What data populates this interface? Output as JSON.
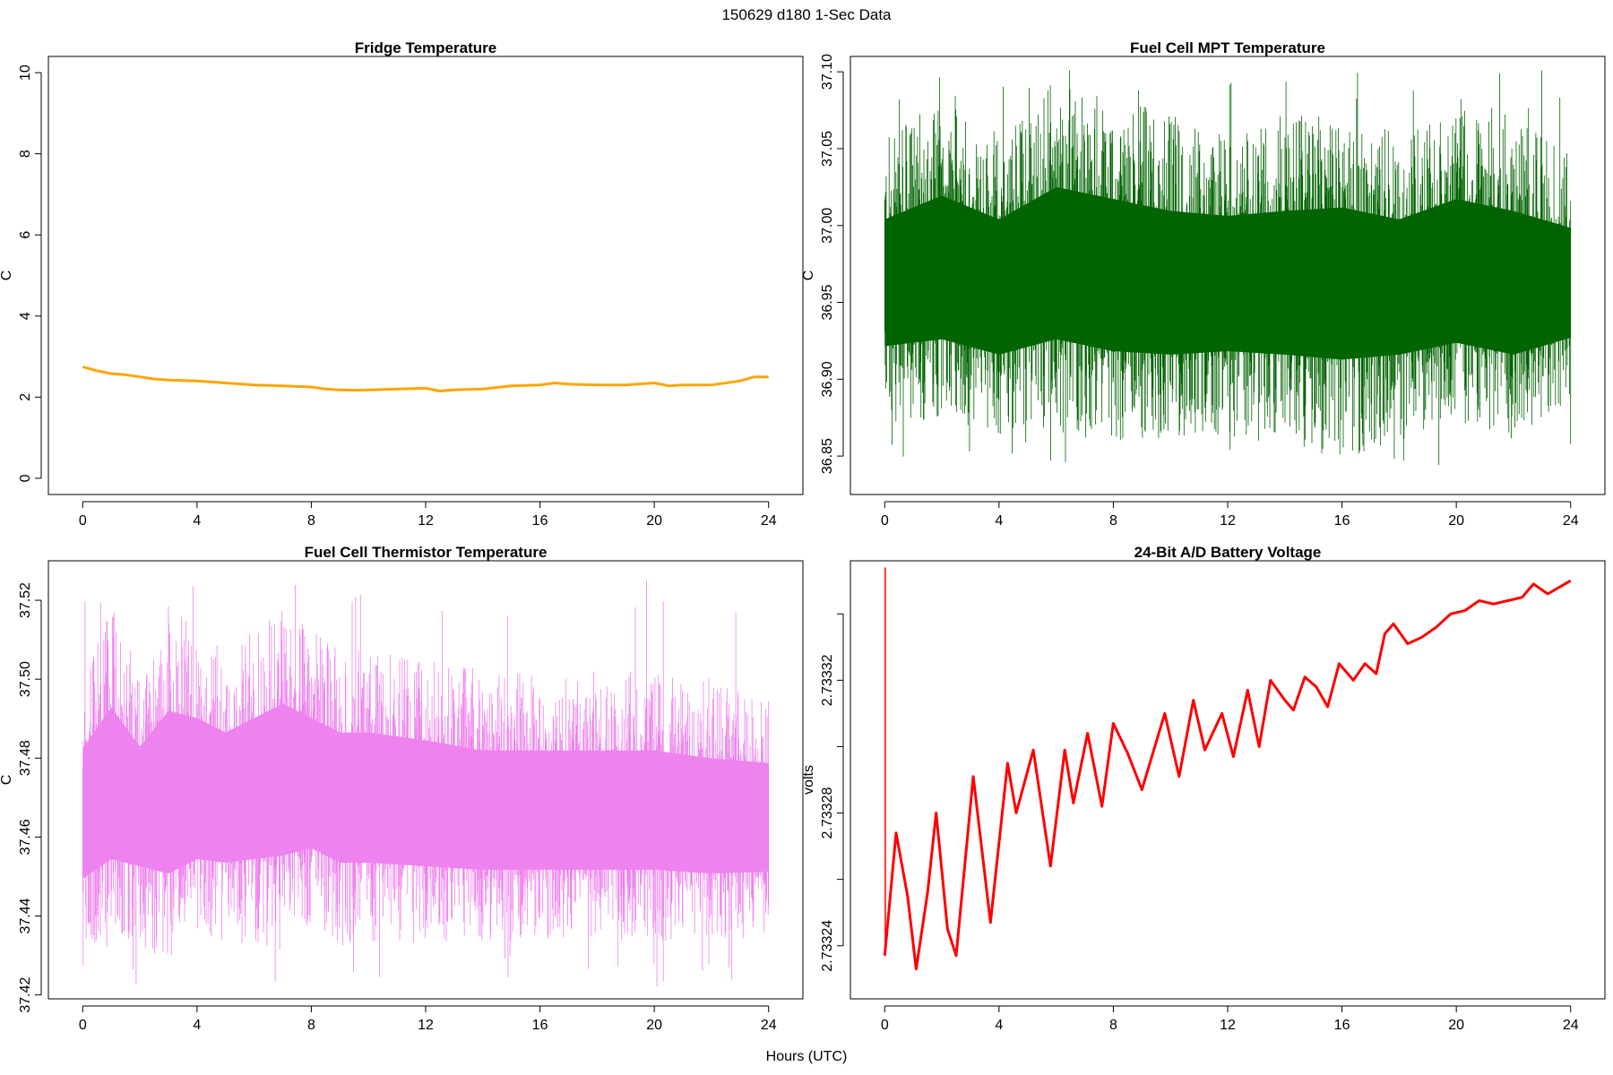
{
  "figure": {
    "title": "150629   d180   1-Sec Data",
    "xlabel": "Hours (UTC)"
  },
  "chart_data": [
    {
      "type": "line",
      "title": "Fridge Temperature",
      "xlabel": "",
      "ylabel": "C",
      "xlim": [
        -1.2,
        25.2
      ],
      "ylim": [
        -0.4,
        10.4
      ],
      "xticks": [
        0,
        4,
        8,
        12,
        16,
        20,
        24
      ],
      "yticks": [
        0,
        2,
        4,
        6,
        8,
        10
      ],
      "ytick_labels": [
        "0",
        "2",
        "4",
        "6",
        "8",
        "10"
      ],
      "color": "#FFA500",
      "style": "line",
      "series": [
        {
          "x": [
            0,
            0.5,
            1,
            1.5,
            2,
            2.5,
            3,
            4,
            5,
            6,
            7,
            8,
            8.5,
            9,
            9.5,
            10,
            11,
            12,
            12.5,
            13,
            14,
            15,
            16,
            16.5,
            17,
            18,
            19,
            20,
            20.5,
            21,
            22,
            23,
            23.5,
            24
          ],
          "y": [
            2.75,
            2.65,
            2.58,
            2.55,
            2.5,
            2.45,
            2.42,
            2.4,
            2.35,
            2.3,
            2.28,
            2.25,
            2.2,
            2.18,
            2.17,
            2.18,
            2.2,
            2.22,
            2.15,
            2.18,
            2.2,
            2.28,
            2.3,
            2.35,
            2.32,
            2.3,
            2.3,
            2.35,
            2.28,
            2.3,
            2.3,
            2.4,
            2.5,
            2.5
          ]
        }
      ]
    },
    {
      "type": "line",
      "title": "Fuel Cell MPT Temperature",
      "xlabel": "",
      "ylabel": "C",
      "xlim": [
        -1.2,
        25.2
      ],
      "ylim": [
        36.825,
        37.11
      ],
      "xticks": [
        0,
        4,
        8,
        12,
        16,
        20,
        24
      ],
      "yticks": [
        36.85,
        36.9,
        36.95,
        37.0,
        37.05,
        37.1
      ],
      "ytick_labels": [
        "36.85",
        "36.90",
        "36.95",
        "37.00",
        "37.05",
        "37.10"
      ],
      "color": "#006400",
      "style": "noise",
      "series": [
        {
          "x": [
            0,
            2,
            4,
            6,
            8,
            10,
            12,
            14,
            16,
            18,
            20,
            22,
            24
          ],
          "y_center": [
            36.96,
            36.97,
            36.96,
            36.97,
            36.965,
            36.96,
            36.965,
            36.96,
            36.965,
            36.96,
            36.965,
            36.96,
            36.96
          ],
          "y_low": [
            36.89,
            36.89,
            36.88,
            36.89,
            36.88,
            36.88,
            36.88,
            36.88,
            36.87,
            36.88,
            36.89,
            36.88,
            36.9
          ],
          "y_high": [
            37.04,
            37.06,
            37.04,
            37.07,
            37.06,
            37.05,
            37.04,
            37.05,
            37.05,
            37.04,
            37.06,
            37.05,
            37.03
          ],
          "min": 36.84,
          "max": 37.103
        }
      ]
    },
    {
      "type": "line",
      "title": "Fuel Cell Thermistor Temperature",
      "xlabel": "",
      "ylabel": "C",
      "xlim": [
        -1.2,
        25.2
      ],
      "ylim": [
        37.419,
        37.53
      ],
      "xticks": [
        0,
        4,
        8,
        12,
        16,
        20,
        24
      ],
      "yticks": [
        37.42,
        37.44,
        37.46,
        37.48,
        37.5,
        37.52
      ],
      "ytick_labels": [
        "37.42",
        "37.44",
        "37.46",
        "37.48",
        "37.50",
        "37.52"
      ],
      "color": "#EE82EE",
      "style": "noise",
      "series": [
        {
          "x": [
            0,
            1,
            2,
            3,
            4,
            5,
            6,
            7,
            8,
            9,
            10,
            12,
            14,
            16,
            18,
            20,
            22,
            24
          ],
          "y_center": [
            37.467,
            37.472,
            37.468,
            37.47,
            37.472,
            37.47,
            37.472,
            37.474,
            37.472,
            37.47,
            37.47,
            37.468,
            37.466,
            37.466,
            37.466,
            37.466,
            37.464,
            37.465
          ],
          "y_low": [
            37.435,
            37.44,
            37.44,
            37.435,
            37.44,
            37.44,
            37.44,
            37.44,
            37.445,
            37.44,
            37.44,
            37.44,
            37.44,
            37.44,
            37.44,
            37.44,
            37.44,
            37.44
          ],
          "y_high": [
            37.495,
            37.51,
            37.495,
            37.51,
            37.505,
            37.5,
            37.505,
            37.51,
            37.505,
            37.5,
            37.5,
            37.498,
            37.495,
            37.495,
            37.495,
            37.495,
            37.493,
            37.49
          ],
          "min": 37.422,
          "max": 37.528
        }
      ]
    },
    {
      "type": "line",
      "title": "24-Bit A/D Battery Voltage",
      "xlabel": "",
      "ylabel": "volts",
      "xlim": [
        -1.2,
        25.2
      ],
      "ylim": [
        2.733224,
        2.733356
      ],
      "xticks": [
        0,
        4,
        8,
        12,
        16,
        20,
        24
      ],
      "yticks": [
        2.73324,
        2.73326,
        2.73328,
        2.7333,
        2.73332,
        2.73334
      ],
      "ytick_labels": [
        "2.73324",
        "",
        "2.73328",
        "",
        "2.73332",
        ""
      ],
      "color": "#FF0000",
      "style": "line",
      "spike": {
        "x": 0.02,
        "y": 2.733354
      },
      "series": [
        {
          "x": [
            0,
            0.4,
            0.8,
            1.1,
            1.5,
            1.8,
            2.2,
            2.5,
            3.1,
            3.7,
            4.3,
            4.6,
            5.2,
            5.8,
            6.3,
            6.6,
            7.1,
            7.6,
            8.0,
            8.5,
            9.0,
            9.8,
            10.3,
            10.8,
            11.2,
            11.8,
            12.2,
            12.7,
            13.1,
            13.5,
            14.0,
            14.3,
            14.7,
            15.1,
            15.5,
            15.9,
            16.4,
            16.8,
            17.2,
            17.5,
            17.8,
            18.3,
            18.8,
            19.3,
            19.8,
            20.3,
            20.8,
            21.3,
            21.8,
            22.3,
            22.7,
            23.2,
            23.6,
            24.0
          ],
          "y": [
            2.733237,
            2.733274,
            2.733255,
            2.733233,
            2.733256,
            2.73328,
            2.733245,
            2.733237,
            2.733291,
            2.733247,
            2.733295,
            2.73328,
            2.733299,
            2.733264,
            2.733299,
            2.733283,
            2.733304,
            2.733282,
            2.733307,
            2.733298,
            2.733287,
            2.73331,
            2.733291,
            2.733314,
            2.733299,
            2.73331,
            2.733297,
            2.733317,
            2.7333,
            2.73332,
            2.733314,
            2.733311,
            2.733321,
            2.733318,
            2.733312,
            2.733325,
            2.73332,
            2.733325,
            2.733322,
            2.733334,
            2.733337,
            2.733331,
            2.733333,
            2.733336,
            2.73334,
            2.733341,
            2.733344,
            2.733343,
            2.733344,
            2.733345,
            2.733349,
            2.733346,
            2.733348,
            2.73335
          ]
        }
      ]
    }
  ]
}
